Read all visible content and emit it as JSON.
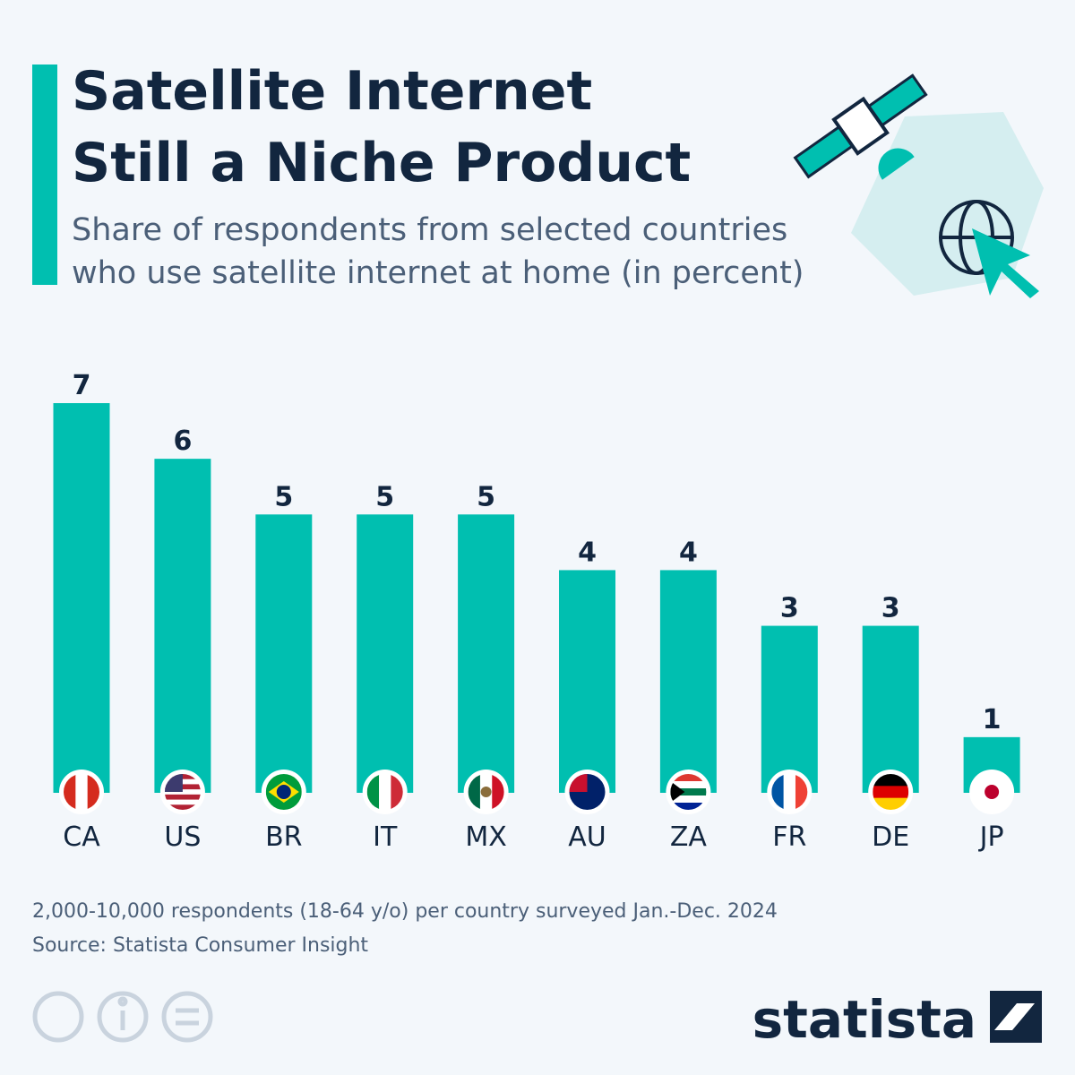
{
  "chart_data": {
    "type": "bar",
    "title": [
      "Satellite Internet",
      "Still a Niche Product"
    ],
    "subtitle": [
      "Share of respondents from selected countries",
      "who use satellite internet at home (in percent)"
    ],
    "categories": [
      "CA",
      "US",
      "BR",
      "IT",
      "MX",
      "AU",
      "ZA",
      "FR",
      "DE",
      "JP"
    ],
    "values": [
      7,
      6,
      5,
      5,
      5,
      4,
      4,
      3,
      3,
      1
    ],
    "color": "#00bfb0",
    "note": "2,000-10,000 respondents (18-64 y/o) per country surveyed Jan.-Dec. 2024",
    "source": "Source: Statista Consumer Insight",
    "logo": "statista"
  }
}
